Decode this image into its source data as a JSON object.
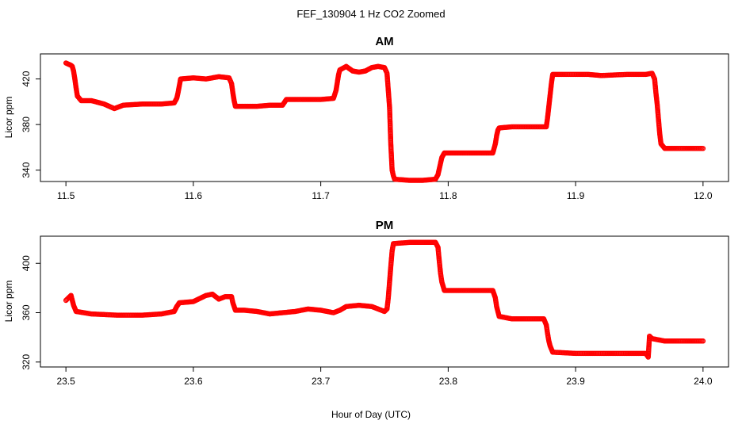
{
  "title": "FEF_130904  1 Hz CO2 Zoomed",
  "xlabel": "Hour of Day (UTC)",
  "marker_color": "#ff0000",
  "chart_data": [
    {
      "type": "scatter",
      "title": "AM",
      "xlabel": "",
      "ylabel": "Licor ppm",
      "xlim": [
        11.48,
        12.02
      ],
      "ylim": [
        330,
        442
      ],
      "xticks": [
        "11.5",
        "11.6",
        "11.7",
        "11.8",
        "11.9",
        "12.0"
      ],
      "xtick_values": [
        11.5,
        11.6,
        11.7,
        11.8,
        11.9,
        12.0
      ],
      "yticks": [
        "340",
        "380",
        "420"
      ],
      "ytick_values": [
        340,
        380,
        420
      ],
      "grid": false,
      "points": [
        [
          11.5,
          434
        ],
        [
          11.502,
          433
        ],
        [
          11.504,
          432
        ],
        [
          11.505,
          431
        ],
        [
          11.506,
          427
        ],
        [
          11.507,
          420
        ],
        [
          11.508,
          412
        ],
        [
          11.509,
          405
        ],
        [
          11.512,
          401
        ],
        [
          11.52,
          401
        ],
        [
          11.53,
          398
        ],
        [
          11.538,
          394
        ],
        [
          11.545,
          397
        ],
        [
          11.56,
          398
        ],
        [
          11.575,
          398
        ],
        [
          11.585,
          399
        ],
        [
          11.587,
          403
        ],
        [
          11.588,
          408
        ],
        [
          11.589,
          414
        ],
        [
          11.59,
          420
        ],
        [
          11.6,
          421
        ],
        [
          11.61,
          420
        ],
        [
          11.62,
          422
        ],
        [
          11.628,
          421
        ],
        [
          11.63,
          416
        ],
        [
          11.631,
          408
        ],
        [
          11.632,
          401
        ],
        [
          11.633,
          396
        ],
        [
          11.64,
          396
        ],
        [
          11.65,
          396
        ],
        [
          11.66,
          397
        ],
        [
          11.67,
          397
        ],
        [
          11.673,
          402
        ],
        [
          11.68,
          402
        ],
        [
          11.69,
          402
        ],
        [
          11.7,
          402
        ],
        [
          11.71,
          403
        ],
        [
          11.712,
          410
        ],
        [
          11.713,
          417
        ],
        [
          11.714,
          424
        ],
        [
          11.715,
          428
        ],
        [
          11.72,
          431
        ],
        [
          11.725,
          427
        ],
        [
          11.73,
          426
        ],
        [
          11.735,
          427
        ],
        [
          11.74,
          430
        ],
        [
          11.745,
          431
        ],
        [
          11.75,
          430
        ],
        [
          11.752,
          425
        ],
        [
          11.753,
          410
        ],
        [
          11.754,
          395
        ],
        [
          11.755,
          362
        ],
        [
          11.756,
          340
        ],
        [
          11.757,
          335
        ],
        [
          11.758,
          332
        ],
        [
          11.77,
          331
        ],
        [
          11.78,
          331
        ],
        [
          11.79,
          332
        ],
        [
          11.792,
          336
        ],
        [
          11.793,
          341
        ],
        [
          11.794,
          346
        ],
        [
          11.795,
          351
        ],
        [
          11.797,
          355
        ],
        [
          11.81,
          355
        ],
        [
          11.82,
          355
        ],
        [
          11.835,
          355
        ],
        [
          11.837,
          363
        ],
        [
          11.838,
          370
        ],
        [
          11.839,
          375
        ],
        [
          11.84,
          377
        ],
        [
          11.85,
          378
        ],
        [
          11.865,
          378
        ],
        [
          11.877,
          378
        ],
        [
          11.878,
          386
        ],
        [
          11.879,
          396
        ],
        [
          11.88,
          406
        ],
        [
          11.881,
          416
        ],
        [
          11.882,
          424
        ],
        [
          11.89,
          424
        ],
        [
          11.91,
          424
        ],
        [
          11.92,
          423
        ],
        [
          11.94,
          424
        ],
        [
          11.955,
          424
        ],
        [
          11.96,
          425
        ],
        [
          11.962,
          420
        ],
        [
          11.963,
          408
        ],
        [
          11.964,
          398
        ],
        [
          11.965,
          385
        ],
        [
          11.966,
          372
        ],
        [
          11.967,
          363
        ],
        [
          11.97,
          359
        ],
        [
          11.98,
          359
        ],
        [
          12.0,
          359
        ]
      ]
    },
    {
      "type": "scatter",
      "title": "PM",
      "xlabel": "",
      "ylabel": "Licor ppm",
      "xlim": [
        23.48,
        24.02
      ],
      "ylim": [
        316,
        422
      ],
      "xticks": [
        "23.5",
        "23.6",
        "23.7",
        "23.8",
        "23.9",
        "24.0"
      ],
      "xtick_values": [
        23.5,
        23.6,
        23.7,
        23.8,
        23.9,
        24.0
      ],
      "yticks": [
        "320",
        "360",
        "400"
      ],
      "ytick_values": [
        320,
        360,
        400
      ],
      "grid": false,
      "points": [
        [
          23.5,
          370
        ],
        [
          23.502,
          372
        ],
        [
          23.504,
          374
        ],
        [
          23.505,
          370
        ],
        [
          23.506,
          366
        ],
        [
          23.508,
          361
        ],
        [
          23.52,
          359
        ],
        [
          23.54,
          358
        ],
        [
          23.56,
          358
        ],
        [
          23.575,
          359
        ],
        [
          23.585,
          361
        ],
        [
          23.587,
          365
        ],
        [
          23.589,
          368
        ],
        [
          23.6,
          369
        ],
        [
          23.61,
          374
        ],
        [
          23.615,
          375
        ],
        [
          23.62,
          371
        ],
        [
          23.625,
          373
        ],
        [
          23.63,
          373
        ],
        [
          23.631,
          368
        ],
        [
          23.633,
          362
        ],
        [
          23.64,
          362
        ],
        [
          23.65,
          361
        ],
        [
          23.66,
          359
        ],
        [
          23.67,
          360
        ],
        [
          23.68,
          361
        ],
        [
          23.69,
          363
        ],
        [
          23.7,
          362
        ],
        [
          23.71,
          360
        ],
        [
          23.715,
          362
        ],
        [
          23.72,
          365
        ],
        [
          23.73,
          366
        ],
        [
          23.74,
          365
        ],
        [
          23.75,
          361
        ],
        [
          23.752,
          363
        ],
        [
          23.753,
          372
        ],
        [
          23.754,
          385
        ],
        [
          23.755,
          398
        ],
        [
          23.756,
          410
        ],
        [
          23.757,
          416
        ],
        [
          23.77,
          417
        ],
        [
          23.78,
          417
        ],
        [
          23.79,
          417
        ],
        [
          23.792,
          413
        ],
        [
          23.793,
          402
        ],
        [
          23.794,
          392
        ],
        [
          23.795,
          385
        ],
        [
          23.797,
          378
        ],
        [
          23.81,
          378
        ],
        [
          23.82,
          378
        ],
        [
          23.835,
          378
        ],
        [
          23.837,
          372
        ],
        [
          23.838,
          365
        ],
        [
          23.84,
          357
        ],
        [
          23.85,
          355
        ],
        [
          23.86,
          355
        ],
        [
          23.875,
          355
        ],
        [
          23.877,
          350
        ],
        [
          23.878,
          343
        ],
        [
          23.879,
          337
        ],
        [
          23.88,
          333
        ],
        [
          23.882,
          328
        ],
        [
          23.9,
          327
        ],
        [
          23.92,
          327
        ],
        [
          23.94,
          327
        ],
        [
          23.955,
          327
        ],
        [
          23.957,
          324
        ],
        [
          23.958,
          341
        ],
        [
          23.96,
          339
        ],
        [
          23.97,
          337
        ],
        [
          23.98,
          337
        ],
        [
          24.0,
          337
        ]
      ]
    }
  ]
}
